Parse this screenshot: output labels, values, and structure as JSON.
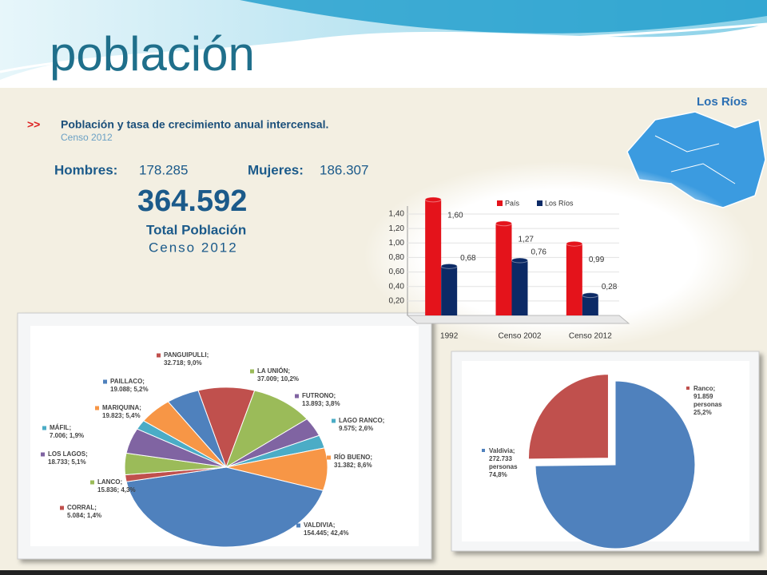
{
  "title": "población",
  "infographic": {
    "region": "Los Ríos",
    "heading": "Población y tasa de crecimiento anual intercensal.",
    "subheading": "Censo 2012",
    "men_label": "Hombres:",
    "men": "178.285",
    "women_label": "Mujeres:",
    "women": "186.307",
    "total": "364.592",
    "total_label": "Total Población",
    "total_census": "Censo 2012"
  },
  "chart_data": [
    {
      "type": "bar",
      "categories": [
        "1992",
        "Censo 2002",
        "Censo 2012"
      ],
      "series": [
        {
          "name": "País",
          "color": "#e4131b",
          "values": [
            1.6,
            1.27,
            0.99
          ],
          "value_labels": [
            "1,60",
            "1,27",
            "0,99"
          ]
        },
        {
          "name": "Los Ríos",
          "color": "#0c2a66",
          "values": [
            0.68,
            0.76,
            0.28
          ],
          "value_labels": [
            "0,68",
            "0,76",
            "0,28"
          ]
        }
      ],
      "ylim": [
        0,
        1.4
      ],
      "yticks": [
        {
          "value": 0.2,
          "label": "0,20"
        },
        {
          "value": 0.4,
          "label": "0,40"
        },
        {
          "value": 0.6,
          "label": "0,60"
        },
        {
          "value": 0.8,
          "label": "0,80"
        },
        {
          "value": 1.0,
          "label": "1,00"
        },
        {
          "value": 1.2,
          "label": "1,20"
        },
        {
          "value": 1.4,
          "label": "1,40"
        }
      ],
      "grid": true,
      "legend": "top"
    },
    {
      "type": "pie",
      "categories": [
        "PANGUIPULLI;",
        "LA UNIÓN;",
        "FUTRONO;",
        "LAGO RANCO;",
        "RÍO BUENO;",
        "VALDIVIA;",
        "CORRAL;",
        "LANCO;",
        "LOS LAGOS;",
        "MÁFIL;",
        "MARIQUINA;",
        "PAILLACO;"
      ],
      "values": [
        32718,
        37009,
        13893,
        9575,
        31382,
        154445,
        5084,
        15836,
        18733,
        7006,
        19823,
        19088
      ],
      "value_labels": [
        "32.718; 9,0%",
        "37.009; 10,2%",
        "13.893; 3,8%",
        "9.575; 2,6%",
        "31.382; 8,6%",
        "154.445; 42,4%",
        "5.084; 1,4%",
        "15.836; 4,3%",
        "18.733; 5,1%",
        "7.006; 1,9%",
        "19.823; 5,4%",
        "19.088; 5,2%"
      ],
      "colors": [
        "#c0504d",
        "#9bbb59",
        "#8064a2",
        "#4bacc6",
        "#f79646",
        "#4f81bd",
        "#c0504d",
        "#9bbb59",
        "#8064a2",
        "#4bacc6",
        "#f79646",
        "#4f81bd"
      ]
    },
    {
      "type": "pie",
      "categories": [
        "Valdivia;",
        "Ranco;"
      ],
      "values": [
        272733,
        91859
      ],
      "value_labels": [
        "272.733 personas 74,8%",
        "91.859 personas 25,2%"
      ],
      "colors": [
        "#4f81bd",
        "#c0504d"
      ]
    }
  ]
}
